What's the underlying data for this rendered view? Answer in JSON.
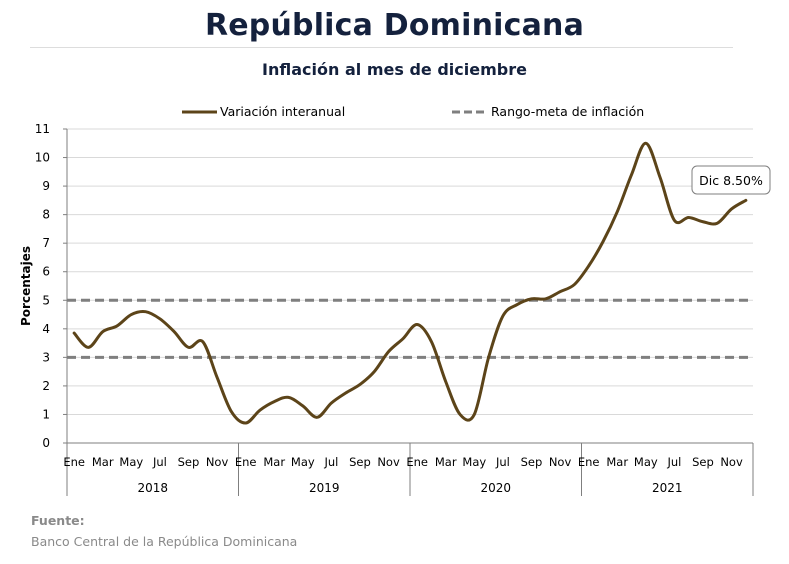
{
  "header": {
    "title": "República Dominicana",
    "subtitle": "Inflación al mes de diciembre"
  },
  "source": {
    "label": "Fuente:",
    "text": "Banco Central de la República Dominicana"
  },
  "chart_data": {
    "type": "line",
    "ylabel": "Porcentajes",
    "ylim": [
      0,
      11
    ],
    "yticks": [
      0,
      1,
      2,
      3,
      4,
      5,
      6,
      7,
      8,
      9,
      10,
      11
    ],
    "grid": true,
    "legend_position": "top",
    "month_labels": [
      "Ene",
      "Mar",
      "May",
      "Jul",
      "Sep",
      "Nov"
    ],
    "years": [
      "2018",
      "2019",
      "2020",
      "2021"
    ],
    "series": [
      {
        "name": "Variación interanual",
        "style": "solid",
        "color": "#5c4419",
        "values": [
          3.85,
          3.35,
          3.9,
          4.1,
          4.5,
          4.6,
          4.35,
          3.9,
          3.35,
          3.55,
          2.3,
          1.1,
          0.7,
          1.15,
          1.45,
          1.6,
          1.3,
          0.9,
          1.4,
          1.75,
          2.05,
          2.5,
          3.2,
          3.65,
          4.15,
          3.55,
          2.15,
          1.0,
          1.0,
          3.0,
          4.45,
          4.85,
          5.05,
          5.05,
          5.3,
          5.55,
          6.2,
          7.05,
          8.1,
          9.4,
          10.5,
          9.3,
          7.8,
          7.9,
          7.75,
          7.7,
          8.2,
          8.5
        ]
      },
      {
        "name": "Rango-meta de inflación",
        "style": "dashed",
        "color": "#7f7f7f",
        "values": [
          3,
          5
        ]
      }
    ],
    "annotation": {
      "text": "Dic 8.50%",
      "x_index": 47,
      "value": 8.5
    }
  }
}
